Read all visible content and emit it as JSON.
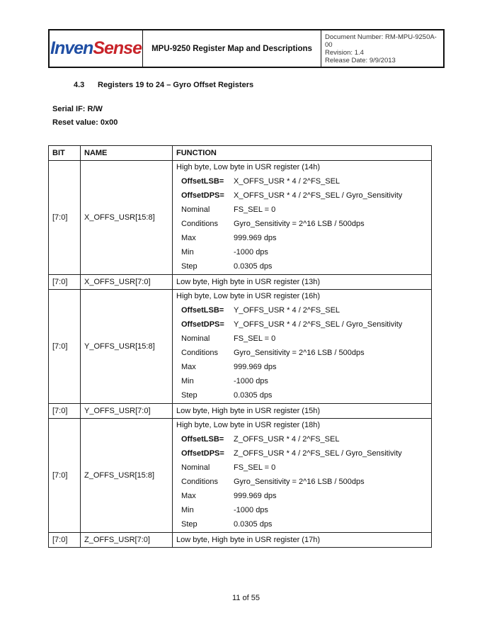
{
  "header": {
    "logo_part1": "Inven",
    "logo_part2": "Sense",
    "logo_colors": [
      "#1f4ea3",
      "#c8242a"
    ],
    "title": "MPU-9250 Register Map and Descriptions",
    "doc_number": "Document Number: RM-MPU-9250A-00",
    "revision": "Revision: 1.4",
    "release_date": "Release Date: 9/9/2013"
  },
  "section": {
    "number": "4.3",
    "title": "Registers 19 to 24 – Gyro Offset Registers"
  },
  "serial_if": "Serial IF: R/W",
  "reset_value": "Reset value: 0x00",
  "table": {
    "headers": [
      "BIT",
      "NAME",
      "FUNCTION"
    ],
    "rows": [
      {
        "bit": "[7:0]",
        "name": "X_OFFS_USR[15:8]",
        "intro": "High byte, Low byte in USR register (14h)",
        "lines": [
          {
            "k": "OffsetLSB=",
            "v": "X_OFFS_USR * 4 / 2^FS_SEL"
          },
          {
            "k": "OffsetDPS=",
            "v": "X_OFFS_USR * 4 / 2^FS_SEL / Gyro_Sensitivity"
          },
          {
            "k": "Nominal",
            "v": "FS_SEL = 0"
          },
          {
            "k": "Conditions",
            "v": "Gyro_Sensitivity = 2^16 LSB / 500dps"
          },
          {
            "k": "Max",
            "v": "999.969 dps"
          },
          {
            "k": "Min",
            "v": "-1000 dps"
          },
          {
            "k": "Step",
            "v": "0.0305 dps"
          }
        ]
      },
      {
        "bit": "[7:0]",
        "name": "X_OFFS_USR[7:0]",
        "intro": "Low byte, High byte in USR register (13h)"
      },
      {
        "bit": "[7:0]",
        "name": "Y_OFFS_USR[15:8]",
        "intro": "High byte, Low byte in USR register (16h)",
        "lines": [
          {
            "k": "OffsetLSB=",
            "v": "Y_OFFS_USR * 4 / 2^FS_SEL"
          },
          {
            "k": "OffsetDPS=",
            "v": "Y_OFFS_USR * 4 / 2^FS_SEL / Gyro_Sensitivity"
          },
          {
            "k": "Nominal",
            "v": "FS_SEL = 0"
          },
          {
            "k": "Conditions",
            "v": "Gyro_Sensitivity = 2^16 LSB / 500dps"
          },
          {
            "k": "Max",
            "v": "999.969 dps"
          },
          {
            "k": "Min",
            "v": "-1000 dps"
          },
          {
            "k": "Step",
            "v": "0.0305 dps"
          }
        ]
      },
      {
        "bit": "[7:0]",
        "name": "Y_OFFS_USR[7:0]",
        "intro": "Low byte, High byte in USR register (15h)"
      },
      {
        "bit": "[7:0]",
        "name": "Z_OFFS_USR[15:8]",
        "intro": "High byte, Low byte in USR register (18h)",
        "lines": [
          {
            "k": "OffsetLSB=",
            "v": "Z_OFFS_USR * 4 / 2^FS_SEL"
          },
          {
            "k": "OffsetDPS=",
            "v": "Z_OFFS_USR * 4 / 2^FS_SEL / Gyro_Sensitivity"
          },
          {
            "k": "Nominal",
            "v": "FS_SEL = 0"
          },
          {
            "k": "Conditions",
            "v": "Gyro_Sensitivity = 2^16 LSB / 500dps"
          },
          {
            "k": "Max",
            "v": "999.969 dps"
          },
          {
            "k": "Min",
            "v": "-1000 dps"
          },
          {
            "k": "Step",
            "v": "0.0305 dps"
          }
        ]
      },
      {
        "bit": "[7:0]",
        "name": "Z_OFFS_USR[7:0]",
        "intro": "Low byte, High byte in USR register (17h)"
      }
    ]
  },
  "footer": {
    "page": "11 of 55"
  }
}
